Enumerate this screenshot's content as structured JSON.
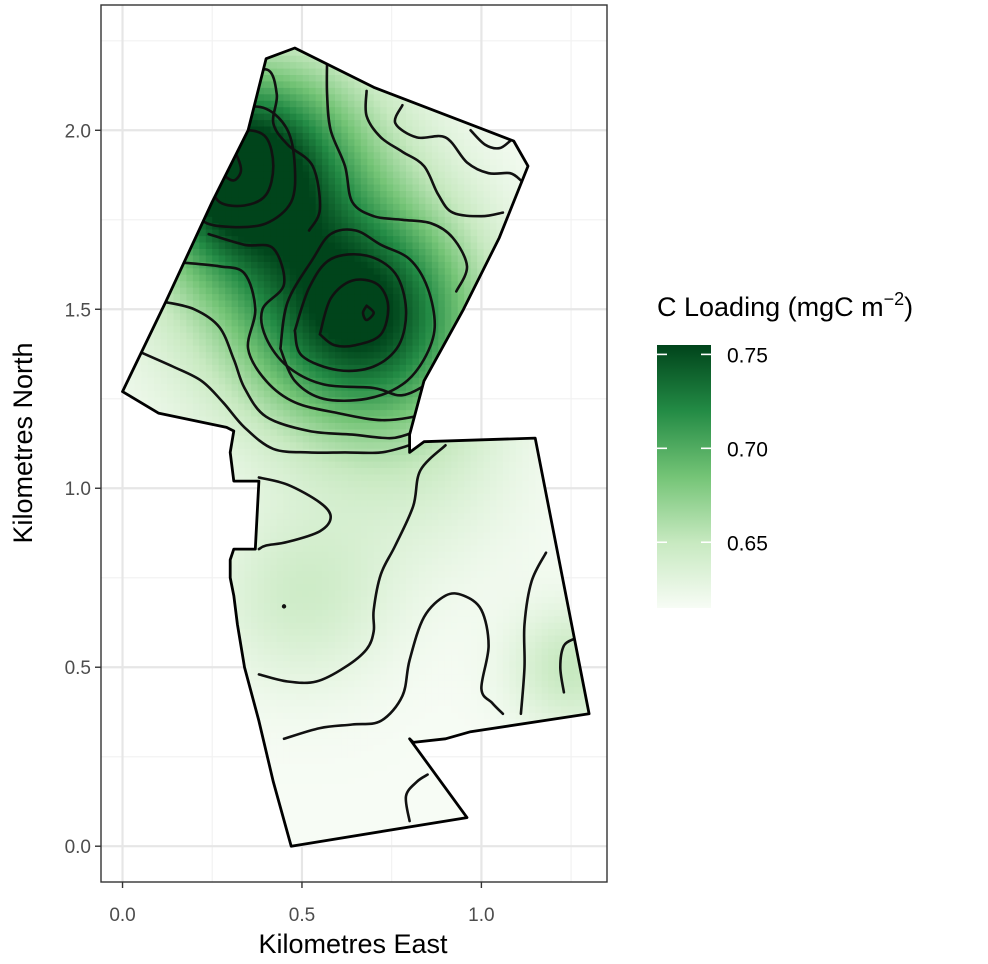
{
  "chart_data": {
    "type": "heatmap",
    "title": "",
    "xlabel": "Kilometres East",
    "ylabel": "Kilometres North",
    "xlim": [
      -0.06,
      1.35
    ],
    "ylim": [
      -0.1,
      2.35
    ],
    "x_ticks": [
      {
        "value": 0.0,
        "label": "0.0"
      },
      {
        "value": 0.5,
        "label": "0.5"
      },
      {
        "value": 1.0,
        "label": "1.0"
      }
    ],
    "y_ticks": [
      {
        "value": 0.0,
        "label": "0.0"
      },
      {
        "value": 0.5,
        "label": "0.5"
      },
      {
        "value": 1.0,
        "label": "1.0"
      },
      {
        "value": 1.5,
        "label": "1.5"
      },
      {
        "value": 2.0,
        "label": "2.0"
      }
    ],
    "grid": true,
    "legend": {
      "title_main": "C Loading (mgC m",
      "title_sup": "−2",
      "title_end": ")",
      "position": "right",
      "colorscale": {
        "min": 0.615,
        "max": 0.755,
        "low_color": "#f7fcf5",
        "mid_color": "#7fc97f",
        "high_color": "#00441b"
      },
      "ticks": [
        {
          "value": 0.75,
          "label": "0.75"
        },
        {
          "value": 0.7,
          "label": "0.70"
        },
        {
          "value": 0.65,
          "label": "0.65"
        }
      ]
    },
    "boundary": [
      [
        0.4,
        2.2
      ],
      [
        0.48,
        2.23
      ],
      [
        0.7,
        2.12
      ],
      [
        1.09,
        1.97
      ],
      [
        1.13,
        1.9
      ],
      [
        1.05,
        1.7
      ],
      [
        0.95,
        1.5
      ],
      [
        0.84,
        1.3
      ],
      [
        0.8,
        1.15
      ],
      [
        0.8,
        1.1
      ],
      [
        0.84,
        1.13
      ],
      [
        1.15,
        1.14
      ],
      [
        1.3,
        0.37
      ],
      [
        0.97,
        0.32
      ],
      [
        0.9,
        0.3
      ],
      [
        0.81,
        0.29
      ],
      [
        0.8,
        0.3
      ],
      [
        0.96,
        0.08
      ],
      [
        0.47,
        0.0
      ],
      [
        0.42,
        0.18
      ],
      [
        0.38,
        0.35
      ],
      [
        0.34,
        0.5
      ],
      [
        0.32,
        0.62
      ],
      [
        0.31,
        0.7
      ],
      [
        0.3,
        0.75
      ],
      [
        0.3,
        0.8
      ],
      [
        0.31,
        0.83
      ],
      [
        0.37,
        0.83
      ],
      [
        0.38,
        1.02
      ],
      [
        0.31,
        1.02
      ],
      [
        0.3,
        1.1
      ],
      [
        0.31,
        1.16
      ],
      [
        0.29,
        1.17
      ],
      [
        0.1,
        1.21
      ],
      [
        0.0,
        1.27
      ],
      [
        0.12,
        1.52
      ],
      [
        0.25,
        1.8
      ],
      [
        0.35,
        2.0
      ]
    ],
    "loading_field": {
      "baseline": 0.615,
      "peaks": [
        {
          "x": 0.31,
          "y": 1.89,
          "amplitude": 0.135,
          "spread": 0.19
        },
        {
          "x": 0.68,
          "y": 1.48,
          "amplitude": 0.12,
          "spread": 0.22
        },
        {
          "x": 0.46,
          "y": 1.6,
          "amplitude": 0.04,
          "spread": 0.3
        },
        {
          "x": 0.55,
          "y": 2.02,
          "amplitude": 0.025,
          "spread": 0.2
        },
        {
          "x": 0.5,
          "y": 0.7,
          "amplitude": 0.028,
          "spread": 0.18
        },
        {
          "x": 1.25,
          "y": 0.5,
          "amplitude": 0.035,
          "spread": 0.12
        },
        {
          "x": 0.85,
          "y": 1.02,
          "amplitude": 0.015,
          "spread": 0.2
        }
      ]
    },
    "contours": [
      [
        [
          0.28,
          1.92
        ],
        [
          0.31,
          1.94
        ],
        [
          0.33,
          1.89
        ],
        [
          0.31,
          1.86
        ],
        [
          0.28,
          1.88
        ],
        [
          0.28,
          1.92
        ]
      ],
      [
        [
          0.68,
          1.51
        ],
        [
          0.7,
          1.49
        ],
        [
          0.68,
          1.47
        ],
        [
          0.67,
          1.49
        ],
        [
          0.68,
          1.51
        ]
      ],
      [
        [
          0.55,
          1.43
        ],
        [
          0.58,
          1.53
        ],
        [
          0.64,
          1.58
        ],
        [
          0.71,
          1.57
        ],
        [
          0.74,
          1.51
        ],
        [
          0.72,
          1.43
        ],
        [
          0.65,
          1.4
        ],
        [
          0.59,
          1.4
        ],
        [
          0.55,
          1.43
        ]
      ],
      [
        [
          0.48,
          1.44
        ],
        [
          0.52,
          1.56
        ],
        [
          0.58,
          1.64
        ],
        [
          0.68,
          1.65
        ],
        [
          0.76,
          1.6
        ],
        [
          0.79,
          1.5
        ],
        [
          0.77,
          1.4
        ],
        [
          0.7,
          1.34
        ],
        [
          0.6,
          1.33
        ],
        [
          0.5,
          1.37
        ],
        [
          0.48,
          1.44
        ]
      ],
      [
        [
          0.44,
          1.39
        ],
        [
          0.46,
          1.52
        ],
        [
          0.53,
          1.64
        ],
        [
          0.58,
          1.71
        ],
        [
          0.65,
          1.72
        ],
        [
          0.72,
          1.68
        ],
        [
          0.8,
          1.64
        ],
        [
          0.85,
          1.56
        ],
        [
          0.87,
          1.45
        ],
        [
          0.84,
          1.36
        ],
        [
          0.78,
          1.29
        ],
        [
          0.68,
          1.25
        ],
        [
          0.56,
          1.25
        ],
        [
          0.48,
          1.3
        ],
        [
          0.44,
          1.39
        ]
      ],
      [
        [
          0.24,
          1.86
        ],
        [
          0.28,
          1.97
        ],
        [
          0.34,
          2.0
        ],
        [
          0.4,
          1.98
        ],
        [
          0.42,
          1.9
        ],
        [
          0.4,
          1.82
        ],
        [
          0.34,
          1.79
        ],
        [
          0.27,
          1.8
        ],
        [
          0.24,
          1.86
        ]
      ],
      [
        [
          0.2,
          1.83
        ],
        [
          0.25,
          2.02
        ],
        [
          0.32,
          2.06
        ],
        [
          0.4,
          2.06
        ],
        [
          0.46,
          2.0
        ],
        [
          0.48,
          1.9
        ],
        [
          0.47,
          1.8
        ],
        [
          0.4,
          1.74
        ],
        [
          0.3,
          1.73
        ],
        [
          0.22,
          1.75
        ],
        [
          0.2,
          1.83
        ]
      ],
      [
        [
          0.24,
          1.71
        ],
        [
          0.34,
          1.68
        ],
        [
          0.42,
          1.67
        ],
        [
          0.45,
          1.57
        ],
        [
          0.39,
          1.5
        ],
        [
          0.4,
          1.42
        ],
        [
          0.46,
          1.34
        ],
        [
          0.56,
          1.29
        ],
        [
          0.7,
          1.28
        ],
        [
          0.78,
          1.26
        ],
        [
          0.86,
          1.3
        ],
        [
          0.89,
          1.34
        ]
      ],
      [
        [
          0.3,
          2.12
        ],
        [
          0.4,
          2.17
        ],
        [
          0.43,
          2.1
        ],
        [
          0.42,
          2.02
        ],
        [
          0.46,
          1.96
        ],
        [
          0.53,
          1.9
        ],
        [
          0.55,
          1.78
        ],
        [
          0.52,
          1.72
        ]
      ],
      [
        [
          0.17,
          1.63
        ],
        [
          0.27,
          1.62
        ],
        [
          0.34,
          1.6
        ],
        [
          0.37,
          1.5
        ],
        [
          0.35,
          1.39
        ],
        [
          0.4,
          1.3
        ],
        [
          0.48,
          1.24
        ],
        [
          0.6,
          1.21
        ],
        [
          0.73,
          1.19
        ],
        [
          0.85,
          1.21
        ],
        [
          0.88,
          1.24
        ]
      ],
      [
        [
          0.12,
          1.52
        ],
        [
          0.2,
          1.5
        ],
        [
          0.27,
          1.45
        ],
        [
          0.31,
          1.36
        ],
        [
          0.34,
          1.28
        ],
        [
          0.4,
          1.2
        ],
        [
          0.52,
          1.16
        ],
        [
          0.64,
          1.15
        ],
        [
          0.75,
          1.14
        ],
        [
          0.82,
          1.16
        ]
      ],
      [
        [
          0.05,
          1.38
        ],
        [
          0.14,
          1.34
        ],
        [
          0.22,
          1.3
        ],
        [
          0.28,
          1.24
        ],
        [
          0.34,
          1.17
        ],
        [
          0.42,
          1.11
        ],
        [
          0.52,
          1.1
        ],
        [
          0.62,
          1.1
        ],
        [
          0.72,
          1.1
        ],
        [
          0.8,
          1.12
        ]
      ],
      [
        [
          0.57,
          2.2
        ],
        [
          0.57,
          2.1
        ],
        [
          0.58,
          2.0
        ],
        [
          0.62,
          1.9
        ],
        [
          0.64,
          1.8
        ],
        [
          0.7,
          1.76
        ],
        [
          0.78,
          1.75
        ],
        [
          0.86,
          1.74
        ],
        [
          0.92,
          1.7
        ],
        [
          0.96,
          1.62
        ],
        [
          0.93,
          1.55
        ]
      ],
      [
        [
          0.68,
          2.11
        ],
        [
          0.68,
          2.04
        ],
        [
          0.72,
          1.98
        ],
        [
          0.78,
          1.94
        ],
        [
          0.84,
          1.9
        ],
        [
          0.88,
          1.82
        ],
        [
          0.92,
          1.77
        ],
        [
          1.0,
          1.76
        ],
        [
          1.06,
          1.77
        ]
      ],
      [
        [
          0.78,
          2.07
        ],
        [
          0.76,
          2.02
        ],
        [
          0.82,
          1.98
        ],
        [
          0.9,
          1.98
        ],
        [
          0.96,
          1.91
        ],
        [
          1.02,
          1.88
        ],
        [
          1.08,
          1.88
        ],
        [
          1.11,
          1.86
        ]
      ],
      [
        [
          0.97,
          2.0
        ],
        [
          1.01,
          1.96
        ],
        [
          1.05,
          1.95
        ],
        [
          1.08,
          1.97
        ]
      ],
      [
        [
          0.38,
          1.03
        ],
        [
          0.46,
          1.01
        ],
        [
          0.55,
          0.96
        ],
        [
          0.58,
          0.92
        ],
        [
          0.55,
          0.88
        ],
        [
          0.46,
          0.85
        ],
        [
          0.4,
          0.84
        ],
        [
          0.38,
          0.83
        ]
      ],
      [
        [
          0.38,
          0.48
        ],
        [
          0.46,
          0.46
        ],
        [
          0.54,
          0.46
        ],
        [
          0.62,
          0.5
        ],
        [
          0.68,
          0.55
        ],
        [
          0.7,
          0.6
        ],
        [
          0.7,
          0.66
        ],
        [
          0.72,
          0.76
        ],
        [
          0.76,
          0.84
        ],
        [
          0.81,
          0.95
        ],
        [
          0.83,
          1.05
        ],
        [
          0.9,
          1.12
        ]
      ],
      [
        [
          0.45,
          0.3
        ],
        [
          0.55,
          0.33
        ],
        [
          0.64,
          0.34
        ],
        [
          0.72,
          0.35
        ],
        [
          0.78,
          0.42
        ],
        [
          0.8,
          0.52
        ],
        [
          0.84,
          0.64
        ],
        [
          0.9,
          0.7
        ],
        [
          0.95,
          0.7
        ],
        [
          1.0,
          0.66
        ],
        [
          1.02,
          0.56
        ],
        [
          1.0,
          0.44
        ],
        [
          1.03,
          0.4
        ],
        [
          1.06,
          0.37
        ]
      ],
      [
        [
          1.11,
          0.37
        ],
        [
          1.12,
          0.5
        ],
        [
          1.12,
          0.62
        ],
        [
          1.14,
          0.74
        ],
        [
          1.18,
          0.82
        ]
      ],
      [
        [
          1.23,
          0.43
        ],
        [
          1.22,
          0.5
        ],
        [
          1.23,
          0.56
        ],
        [
          1.26,
          0.58
        ]
      ],
      [
        [
          0.8,
          0.07
        ],
        [
          0.79,
          0.14
        ],
        [
          0.82,
          0.18
        ],
        [
          0.85,
          0.2
        ]
      ]
    ],
    "markers": [
      {
        "x": 0.45,
        "y": 0.67
      }
    ]
  }
}
